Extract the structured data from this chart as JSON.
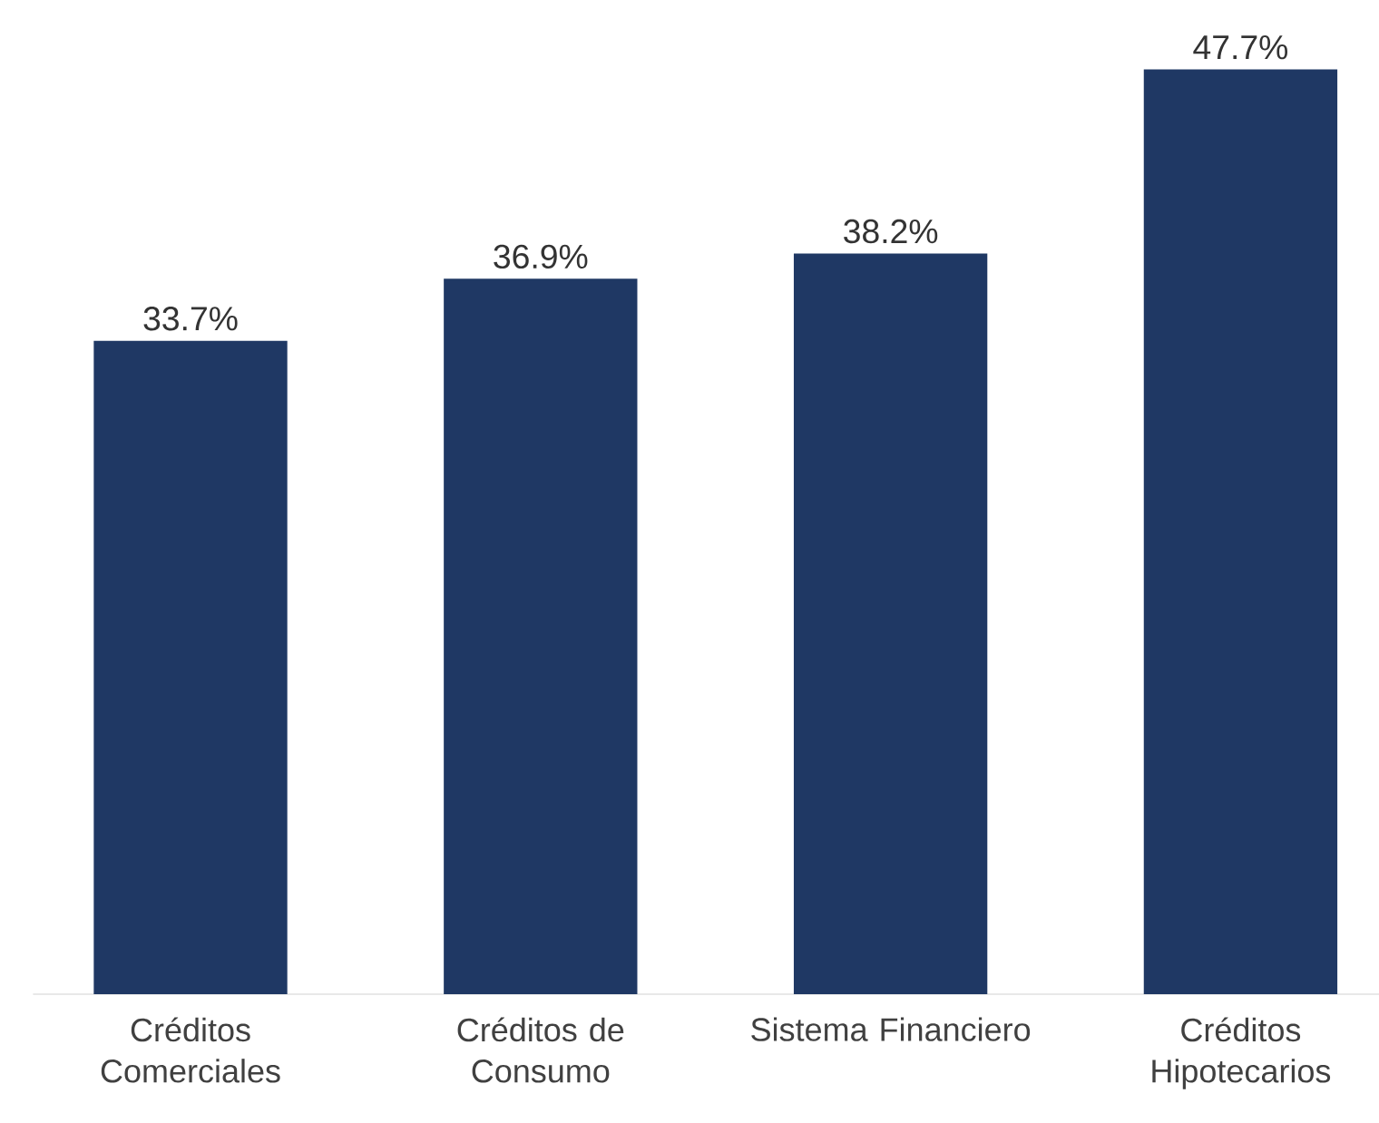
{
  "chart_data": {
    "type": "bar",
    "categories": [
      "Créditos Comerciales",
      "Créditos de Consumo",
      "Sistema Financiero",
      "Créditos Hipotecarios"
    ],
    "values": [
      33.7,
      36.9,
      38.2,
      47.7
    ],
    "value_labels": [
      "33.7%",
      "36.9%",
      "38.2%",
      "47.7%"
    ],
    "color": "#1f3864"
  }
}
